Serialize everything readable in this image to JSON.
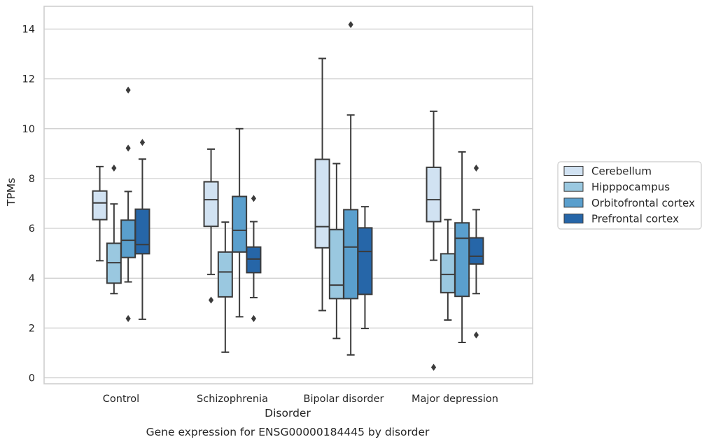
{
  "chart_data": {
    "type": "boxplot",
    "title": "Gene expression for ENSG00000184445 by disorder",
    "xlabel": "Disorder",
    "ylabel": "TPMs",
    "ylim": [
      -0.25,
      14.9
    ],
    "yticks": [
      0,
      2,
      4,
      6,
      8,
      10,
      12,
      14
    ],
    "grid": true,
    "legend_position": "right",
    "categories": [
      "Control",
      "Schizophrenia",
      "Bipolar disorder",
      "Major depression"
    ],
    "series": [
      {
        "name": "Cerebellum",
        "color": "#d1e2f2",
        "boxes": [
          {
            "whislo": 4.7,
            "q1": 6.35,
            "med": 7.02,
            "q3": 7.5,
            "whishi": 8.48,
            "fliers": []
          },
          {
            "whislo": 4.15,
            "q1": 6.08,
            "med": 7.15,
            "q3": 7.87,
            "whishi": 9.18,
            "fliers": [
              3.12
            ]
          },
          {
            "whislo": 2.7,
            "q1": 5.22,
            "med": 6.07,
            "q3": 8.77,
            "whishi": 12.82,
            "fliers": []
          },
          {
            "whislo": 4.72,
            "q1": 6.27,
            "med": 7.15,
            "q3": 8.45,
            "whishi": 10.7,
            "fliers": [
              0.42
            ]
          }
        ]
      },
      {
        "name": "Hipppocampus",
        "color": "#9ac8e0",
        "boxes": [
          {
            "whislo": 3.38,
            "q1": 3.8,
            "med": 4.62,
            "q3": 5.4,
            "whishi": 6.98,
            "fliers": [
              8.42
            ]
          },
          {
            "whislo": 1.03,
            "q1": 3.25,
            "med": 4.25,
            "q3": 5.05,
            "whishi": 6.25,
            "fliers": []
          },
          {
            "whislo": 1.58,
            "q1": 3.18,
            "med": 3.72,
            "q3": 5.95,
            "whishi": 8.6,
            "fliers": []
          },
          {
            "whislo": 2.32,
            "q1": 3.42,
            "med": 4.15,
            "q3": 4.98,
            "whishi": 6.35,
            "fliers": []
          }
        ]
      },
      {
        "name": "Orbitofrontal cortex",
        "color": "#5a9fcd",
        "boxes": [
          {
            "whislo": 3.85,
            "q1": 4.83,
            "med": 5.52,
            "q3": 6.33,
            "whishi": 7.48,
            "fliers": [
              2.38,
              9.22,
              11.55
            ]
          },
          {
            "whislo": 2.45,
            "q1": 5.05,
            "med": 5.92,
            "q3": 7.28,
            "whishi": 10.0,
            "fliers": []
          },
          {
            "whislo": 0.92,
            "q1": 3.18,
            "med": 5.25,
            "q3": 6.75,
            "whishi": 10.55,
            "fliers": [
              14.18
            ]
          },
          {
            "whislo": 1.42,
            "q1": 3.27,
            "med": 5.6,
            "q3": 6.22,
            "whishi": 9.07,
            "fliers": []
          }
        ]
      },
      {
        "name": "Prefrontal cortex",
        "color": "#2666a8",
        "boxes": [
          {
            "whislo": 2.35,
            "q1": 4.98,
            "med": 5.35,
            "q3": 6.77,
            "whishi": 8.78,
            "fliers": [
              9.45
            ]
          },
          {
            "whislo": 3.22,
            "q1": 4.22,
            "med": 4.77,
            "q3": 5.25,
            "whishi": 6.27,
            "fliers": [
              2.38,
              7.2
            ]
          },
          {
            "whislo": 1.98,
            "q1": 3.35,
            "med": 5.07,
            "q3": 6.02,
            "whishi": 6.87,
            "fliers": []
          },
          {
            "whislo": 3.38,
            "q1": 4.57,
            "med": 4.88,
            "q3": 5.62,
            "whishi": 6.75,
            "fliers": [
              1.72,
              8.42
            ]
          }
        ]
      }
    ]
  }
}
